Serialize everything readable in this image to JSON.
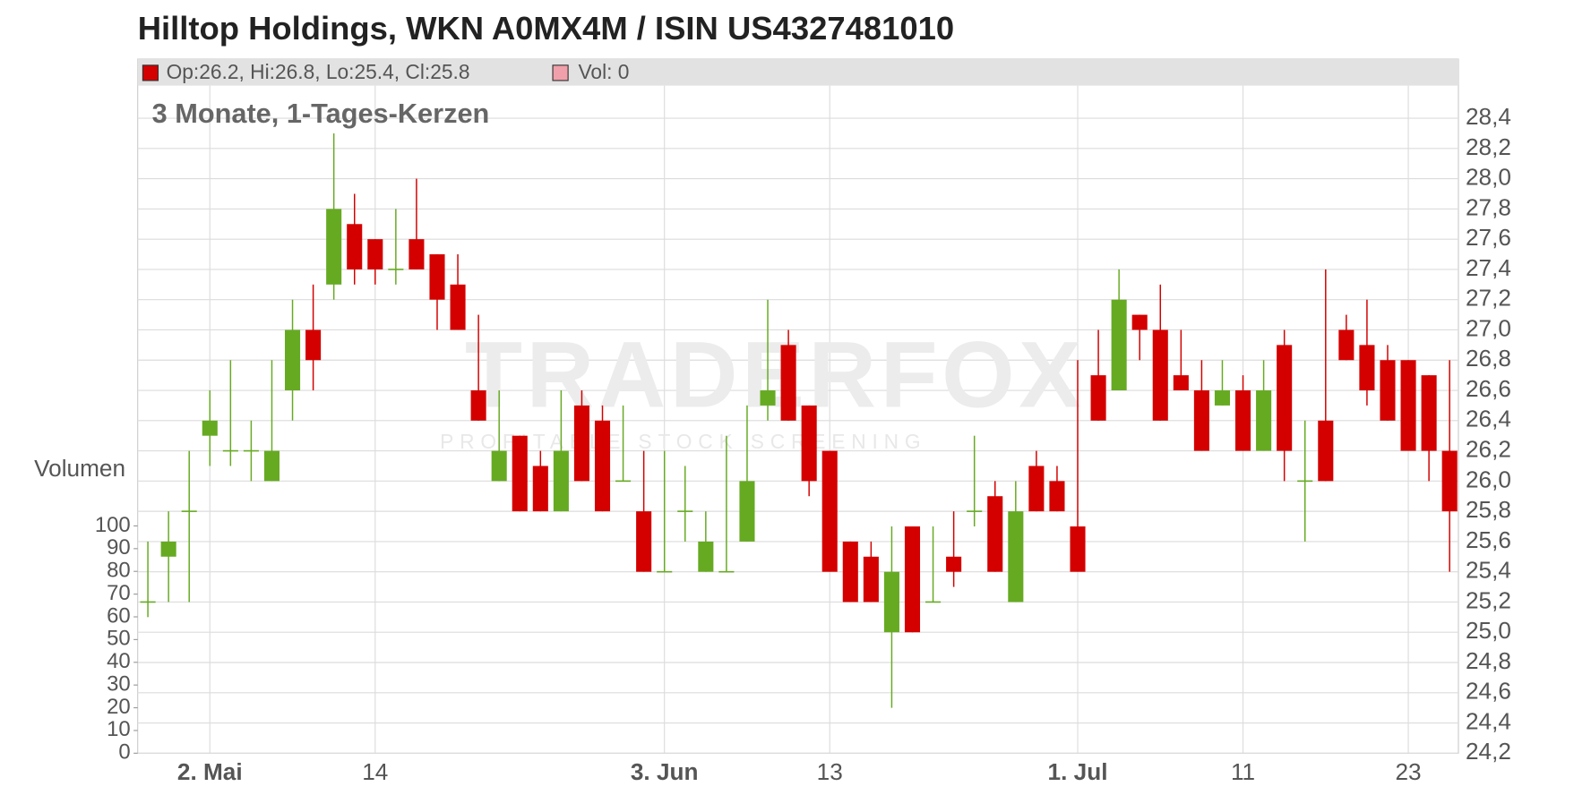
{
  "chart_data": {
    "type": "candlestick",
    "title": "Hilltop Holdings, WKN A0MX4M / ISIN US4327481010",
    "subtitle": "3 Monate, 1-Tages-Kerzen",
    "legend_ohlc": "Op:26.2, Hi:26.8, Lo:25.4, Cl:25.8",
    "legend_volume": "Vol: 0",
    "volume_axis_label": "Volumen",
    "watermark": "TRADERFOX",
    "watermark_sub": "PROFITABLE STOCK SCREENING",
    "up_color": "#66aa22",
    "down_color": "#d40000",
    "volume_color": "#f0a0aa",
    "grid": true,
    "categories": [
      null,
      null,
      null,
      "2. Mai",
      null,
      null,
      null,
      null,
      null,
      null,
      null,
      "14",
      null,
      null,
      null,
      null,
      null,
      null,
      null,
      null,
      null,
      null,
      null,
      null,
      null,
      "3. Jun",
      null,
      null,
      null,
      null,
      null,
      null,
      null,
      "13",
      null,
      null,
      null,
      null,
      null,
      null,
      null,
      null,
      null,
      null,
      null,
      "1. Jul",
      null,
      null,
      null,
      null,
      null,
      null,
      null,
      "11",
      null,
      null,
      null,
      null,
      null,
      null,
      null,
      "23",
      null,
      null
    ],
    "open": [
      25.2,
      25.5,
      25.8,
      26.3,
      26.2,
      26.2,
      26.0,
      26.6,
      27.0,
      27.3,
      27.7,
      27.6,
      27.4,
      27.6,
      27.5,
      27.3,
      26.6,
      26.0,
      26.3,
      26.1,
      25.8,
      26.5,
      26.4,
      26.0,
      25.8,
      25.4,
      25.8,
      25.4,
      25.4,
      25.6,
      26.5,
      26.9,
      26.5,
      26.2,
      25.6,
      25.5,
      25.0,
      25.7,
      25.2,
      25.5,
      25.8,
      25.9,
      25.2,
      26.1,
      26.0,
      25.7,
      26.7,
      26.6,
      27.1,
      27.0,
      26.7,
      26.6,
      26.5,
      26.6,
      26.2,
      26.9,
      26.0,
      26.4,
      27.0,
      26.9,
      26.8,
      26.8,
      26.7,
      26.2
    ],
    "high": [
      25.6,
      25.8,
      26.2,
      26.6,
      26.8,
      26.4,
      26.8,
      27.2,
      27.3,
      28.3,
      27.9,
      27.6,
      27.8,
      28.0,
      27.5,
      27.5,
      27.1,
      26.6,
      26.3,
      26.2,
      26.6,
      26.6,
      26.5,
      26.5,
      26.2,
      26.2,
      26.1,
      25.8,
      26.3,
      26.5,
      27.2,
      27.0,
      26.5,
      26.2,
      25.6,
      25.6,
      25.7,
      25.7,
      25.7,
      25.8,
      26.3,
      26.0,
      26.0,
      26.2,
      26.1,
      26.8,
      27.0,
      27.4,
      27.1,
      27.3,
      27.0,
      26.8,
      26.8,
      26.7,
      26.8,
      27.0,
      26.4,
      27.4,
      27.1,
      27.2,
      26.9,
      26.8,
      26.7,
      26.8
    ],
    "low": [
      25.1,
      25.2,
      25.2,
      26.1,
      26.1,
      26.0,
      26.0,
      26.4,
      26.6,
      27.2,
      27.3,
      27.3,
      27.3,
      27.4,
      27.0,
      27.0,
      26.4,
      26.0,
      25.8,
      25.8,
      25.8,
      26.0,
      25.8,
      26.0,
      25.4,
      25.4,
      25.6,
      25.4,
      25.4,
      25.6,
      26.4,
      26.4,
      25.9,
      25.4,
      25.2,
      25.2,
      24.5,
      25.0,
      25.2,
      25.3,
      25.7,
      25.4,
      25.2,
      25.8,
      25.8,
      25.4,
      26.4,
      26.6,
      26.8,
      26.4,
      26.6,
      26.2,
      26.5,
      26.2,
      26.2,
      26.0,
      25.6,
      26.0,
      26.8,
      26.5,
      26.4,
      26.2,
      26.0,
      25.4
    ],
    "close": [
      25.2,
      25.6,
      25.8,
      26.4,
      26.2,
      26.2,
      26.2,
      27.0,
      26.8,
      27.8,
      27.4,
      27.4,
      27.4,
      27.4,
      27.2,
      27.0,
      26.4,
      26.2,
      25.8,
      25.8,
      26.2,
      26.0,
      25.8,
      26.0,
      25.4,
      25.4,
      25.8,
      25.6,
      25.4,
      26.0,
      26.6,
      26.4,
      26.0,
      25.4,
      25.2,
      25.2,
      25.4,
      25.0,
      25.2,
      25.4,
      25.8,
      25.4,
      25.8,
      25.8,
      25.8,
      25.4,
      26.4,
      27.2,
      27.0,
      26.4,
      26.6,
      26.2,
      26.6,
      26.2,
      26.6,
      26.2,
      26.0,
      26.0,
      26.8,
      26.6,
      26.4,
      26.2,
      26.2,
      25.8
    ],
    "ylim": [
      24.2,
      28.4
    ],
    "yticks": [
      {
        "value": 24.2,
        "label": "24,2"
      },
      {
        "value": 24.4,
        "label": "24,4"
      },
      {
        "value": 24.6,
        "label": "24,6"
      },
      {
        "value": 24.8,
        "label": "24,8"
      },
      {
        "value": 25.0,
        "label": "25,0"
      },
      {
        "value": 25.2,
        "label": "25,2"
      },
      {
        "value": 25.4,
        "label": "25,4"
      },
      {
        "value": 25.6,
        "label": "25,6"
      },
      {
        "value": 25.8,
        "label": "25,8"
      },
      {
        "value": 26.0,
        "label": "26,0"
      },
      {
        "value": 26.2,
        "label": "26,2"
      },
      {
        "value": 26.4,
        "label": "26,4"
      },
      {
        "value": 26.6,
        "label": "26,6"
      },
      {
        "value": 26.8,
        "label": "26,8"
      },
      {
        "value": 27.0,
        "label": "27,0"
      },
      {
        "value": 27.2,
        "label": "27,2"
      },
      {
        "value": 27.4,
        "label": "27,4"
      },
      {
        "value": 27.6,
        "label": "27,6"
      },
      {
        "value": 27.8,
        "label": "27,8"
      },
      {
        "value": 28.0,
        "label": "28,0"
      },
      {
        "value": 28.2,
        "label": "28,2"
      },
      {
        "value": 28.4,
        "label": "28,4"
      }
    ],
    "y2lim": [
      0,
      100
    ],
    "y2ticks": [
      0,
      10,
      20,
      30,
      40,
      50,
      60,
      70,
      80,
      90,
      100
    ]
  }
}
